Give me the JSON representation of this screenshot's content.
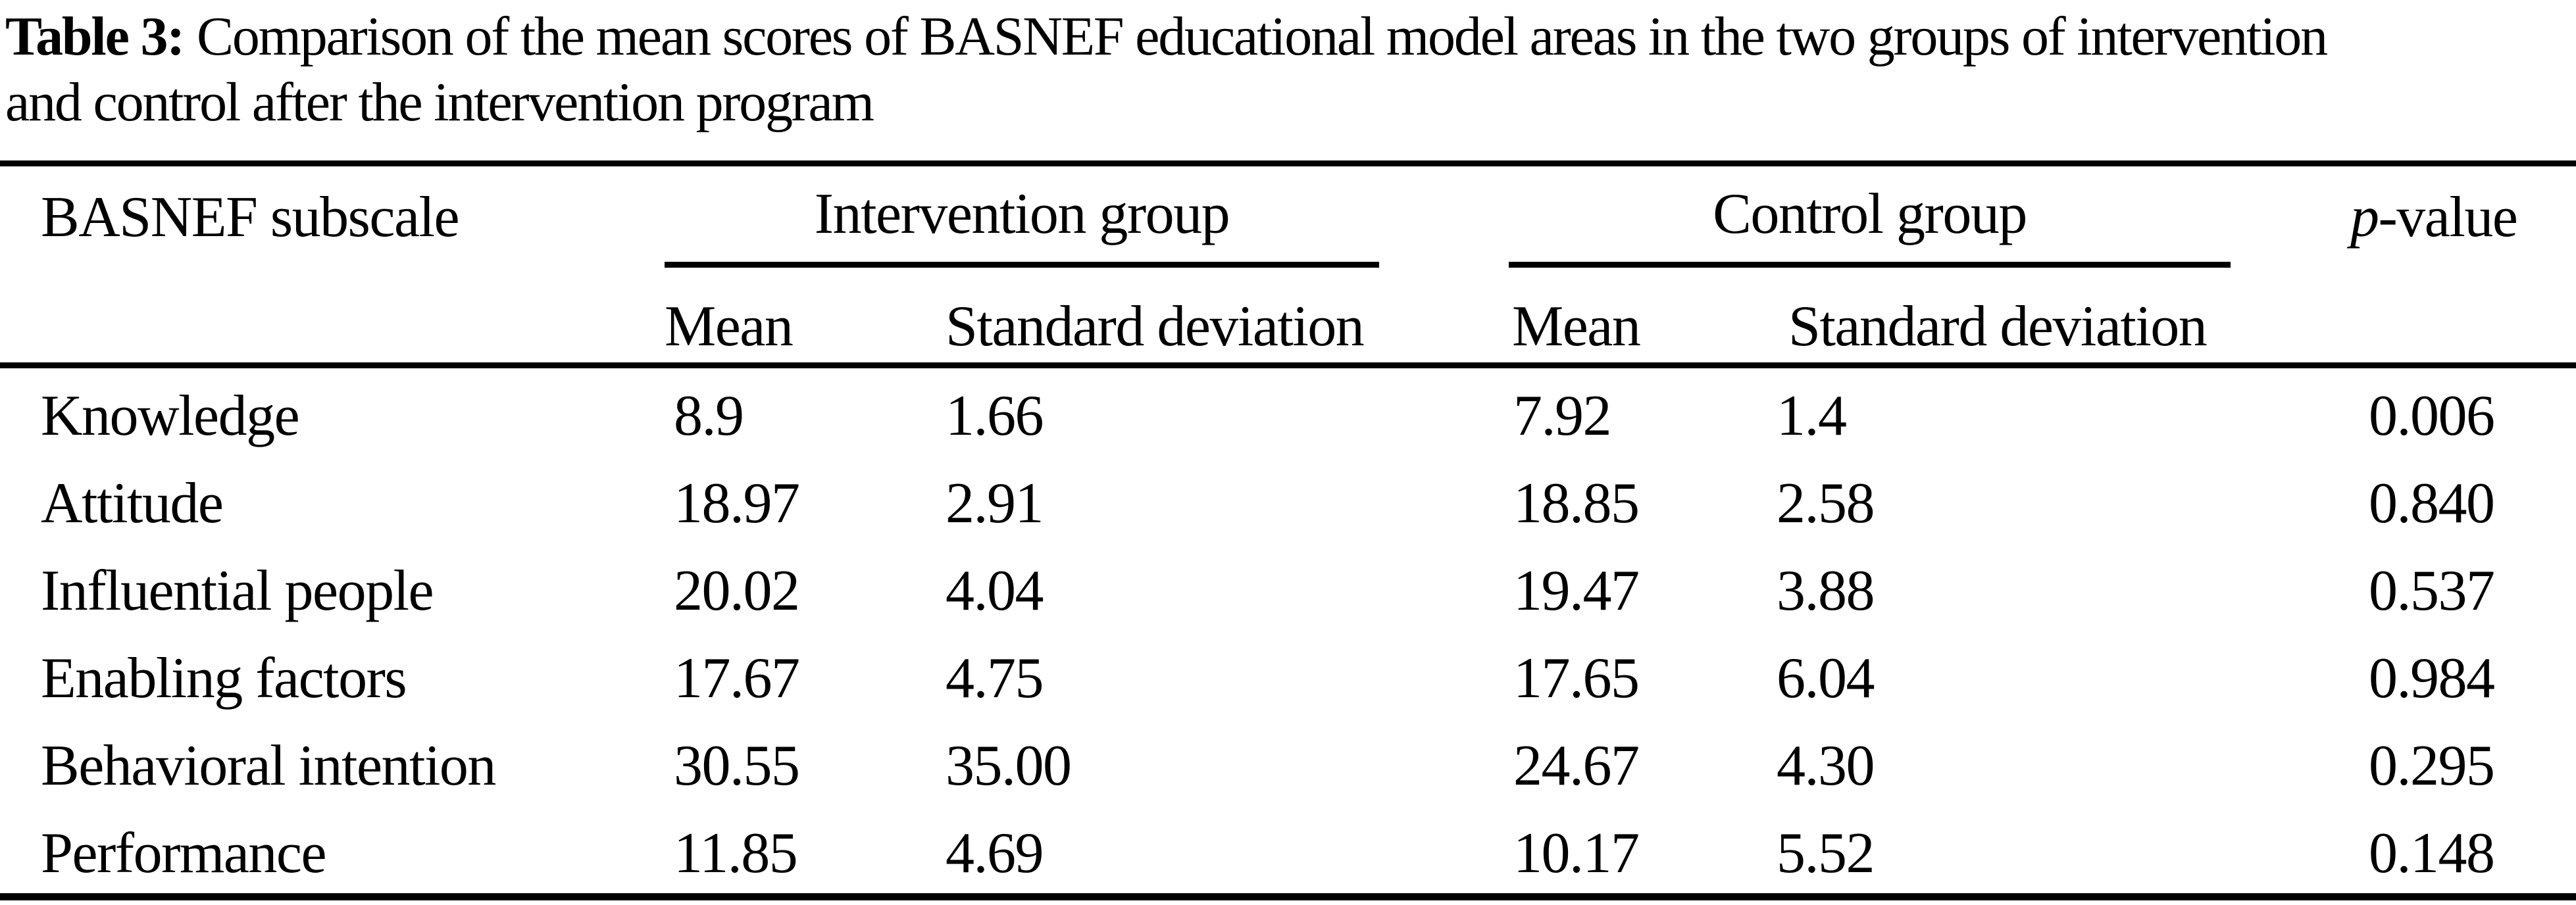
{
  "colors": {
    "text": "#000000",
    "background": "#ffffff"
  },
  "title": {
    "label": "Table 3:",
    "line1": "Comparison of the mean scores of BASNEF educational model areas in the two groups of intervention",
    "line2": "and control after the intervention program"
  },
  "table": {
    "col1_header": "BASNEF subscale",
    "groups": {
      "intervention": "Intervention group",
      "control": "Control group"
    },
    "subheaders": {
      "mean": "Mean",
      "sd": "Standard deviation"
    },
    "pvalue_header": {
      "italic_part": "p",
      "rest": "-value"
    },
    "rows": [
      {
        "subscale": "Knowledge",
        "int_mean": "8.9",
        "int_sd": "1.66",
        "ctrl_mean": "7.92",
        "ctrl_sd": "1.4",
        "p": "0.006"
      },
      {
        "subscale": "Attitude",
        "int_mean": "18.97",
        "int_sd": "2.91",
        "ctrl_mean": "18.85",
        "ctrl_sd": "2.58",
        "p": "0.840"
      },
      {
        "subscale": "Influential people",
        "int_mean": "20.02",
        "int_sd": "4.04",
        "ctrl_mean": "19.47",
        "ctrl_sd": "3.88",
        "p": "0.537"
      },
      {
        "subscale": "Enabling factors",
        "int_mean": "17.67",
        "int_sd": "4.75",
        "ctrl_mean": "17.65",
        "ctrl_sd": "6.04",
        "p": "0.984"
      },
      {
        "subscale": "Behavioral intention",
        "int_mean": "30.55",
        "int_sd": "35.00",
        "ctrl_mean": "24.67",
        "ctrl_sd": "4.30",
        "p": "0.295"
      },
      {
        "subscale": "Performance",
        "int_mean": "11.85",
        "int_sd": "4.69",
        "ctrl_mean": "10.17",
        "ctrl_sd": "5.52",
        "p": "0.148"
      }
    ]
  }
}
